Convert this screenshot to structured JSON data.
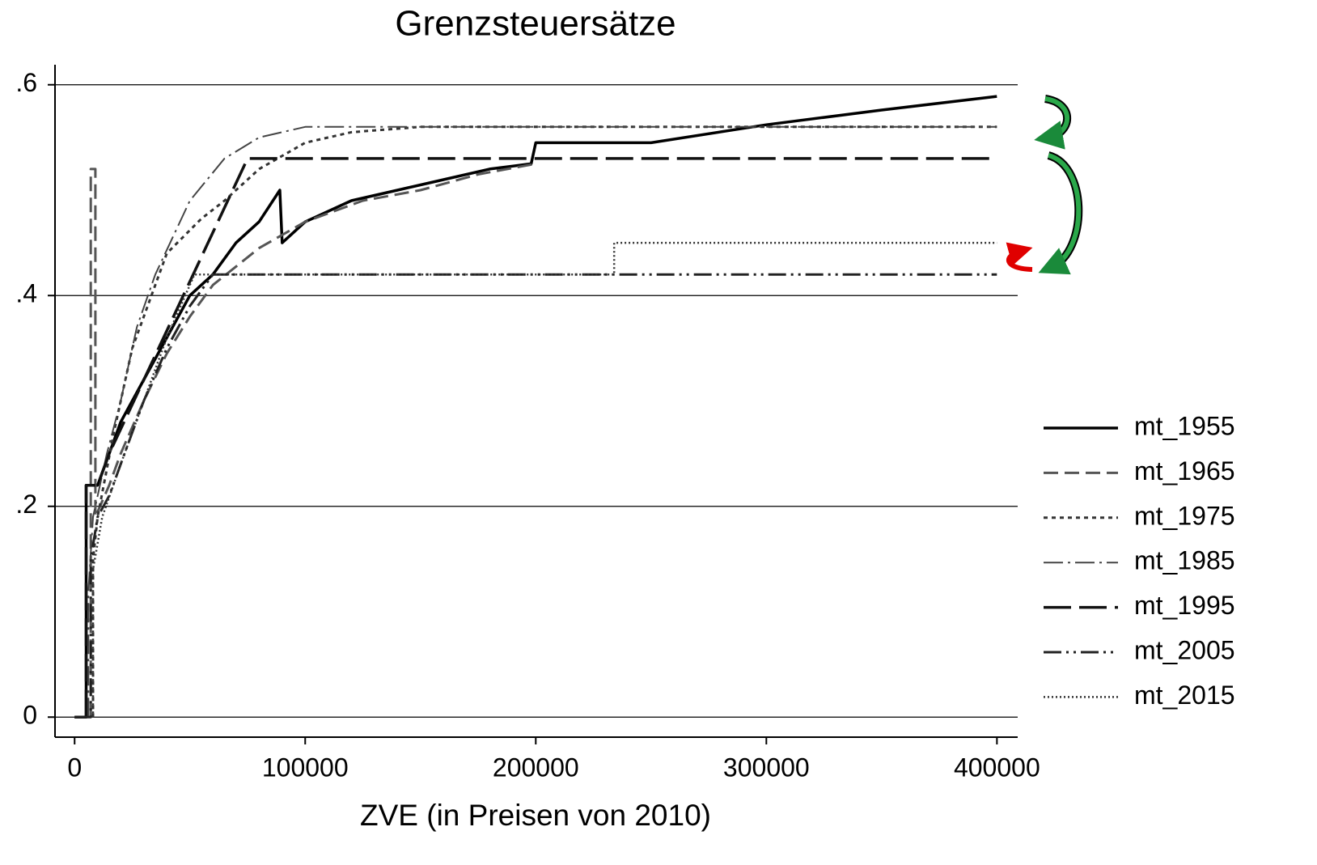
{
  "chart_data": {
    "type": "line",
    "title": "Grenzsteuersätze",
    "x_label": "ZVE (in Preisen von 2010)",
    "xlim": [
      -8500,
      409000
    ],
    "ylim": [
      -0.019,
      0.619
    ],
    "xticks": [
      0,
      100000,
      200000,
      300000,
      400000
    ],
    "yticks": [
      0,
      {
        "value": 0.2,
        "label": ".2"
      },
      {
        "value": 0.4,
        "label": ".4"
      },
      {
        "value": 0.6,
        "label": ".6"
      }
    ],
    "grid": true,
    "legend": "right",
    "series": [
      {
        "name": "mt_1955",
        "color": "#000000",
        "dash": "solid",
        "x": [
          0,
          5000,
          5000,
          10000,
          15000,
          20000,
          30000,
          40000,
          50000,
          60000,
          70000,
          80000,
          89000,
          90000,
          100000,
          120000,
          140000,
          160000,
          180000,
          198000,
          200000,
          250000,
          300000,
          350000,
          400000
        ],
        "values": [
          0,
          0,
          0.22,
          0.22,
          0.25,
          0.28,
          0.32,
          0.36,
          0.4,
          0.42,
          0.45,
          0.47,
          0.5,
          0.45,
          0.47,
          0.49,
          0.5,
          0.51,
          0.52,
          0.525,
          0.545,
          0.545,
          0.562,
          0.576,
          0.589
        ]
      },
      {
        "name": "mt_1965",
        "color": "#555555",
        "dash": "dash",
        "x": [
          7000,
          7000,
          9000,
          9000,
          15000,
          20000,
          30000,
          40000,
          50000,
          60000,
          80000,
          100000,
          125000,
          150000,
          175000,
          200000
        ],
        "values": [
          0,
          0.52,
          0.52,
          0.19,
          0.22,
          0.25,
          0.3,
          0.345,
          0.38,
          0.41,
          0.445,
          0.47,
          0.49,
          0.5,
          0.515,
          0.525
        ]
      },
      {
        "name": "mt_1975",
        "color": "#333333",
        "dash": "dot",
        "x": [
          8000,
          8000,
          10000,
          17000,
          25000,
          40000,
          55000,
          65000,
          80000,
          100000,
          120000,
          150000,
          400000
        ],
        "values": [
          0,
          0.15,
          0.19,
          0.27,
          0.35,
          0.44,
          0.473,
          0.49,
          0.52,
          0.545,
          0.555,
          0.56,
          0.56
        ]
      },
      {
        "name": "mt_1985",
        "color": "#444444",
        "dash": "dashdot",
        "x": [
          6000,
          6000,
          8000,
          14000,
          20000,
          27000,
          35000,
          50000,
          65000,
          80000,
          100000,
          400000
        ],
        "values": [
          0,
          0.12,
          0.19,
          0.25,
          0.3,
          0.37,
          0.42,
          0.49,
          0.53,
          0.55,
          0.56,
          0.56
        ]
      },
      {
        "name": "mt_1995",
        "color": "#111111",
        "dash": "longdash",
        "x": [
          5000,
          5000,
          10000,
          15000,
          75000,
          400000
        ],
        "values": [
          0,
          0.22,
          0.22,
          0.25,
          0.53,
          0.53
        ]
      },
      {
        "name": "mt_2005",
        "color": "#222222",
        "dash": "dashdotdot",
        "x": [
          0,
          7000,
          7000,
          10000,
          15000,
          20000,
          30000,
          40000,
          50000,
          60000,
          400000
        ],
        "values": [
          0,
          0,
          0.15,
          0.19,
          0.21,
          0.24,
          0.3,
          0.35,
          0.39,
          0.42,
          0.42
        ]
      },
      {
        "name": "mt_2015",
        "color": "#333333",
        "dash": "finedot",
        "x": [
          8000,
          8000,
          12000,
          20000,
          30000,
          40000,
          52000,
          234000,
          234000,
          400000
        ],
        "values": [
          0,
          0.14,
          0.19,
          0.24,
          0.3,
          0.36,
          0.42,
          0.42,
          0.45,
          0.45
        ]
      }
    ]
  }
}
